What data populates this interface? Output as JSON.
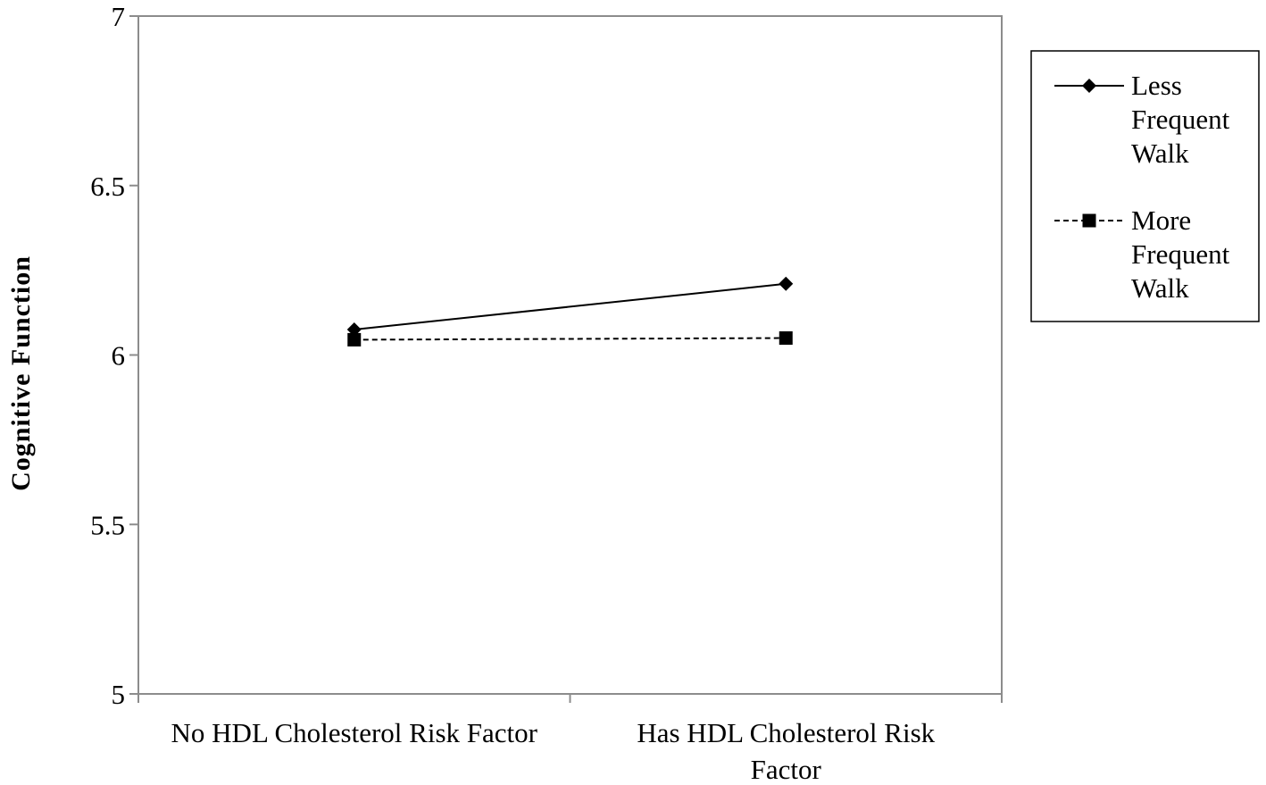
{
  "chart_data": {
    "type": "line",
    "categories": [
      [
        "No HDL Cholesterol Risk Factor"
      ],
      [
        "Has HDL Cholesterol Risk",
        "Factor"
      ]
    ],
    "ylabel": "Cognitive  Function",
    "xlabel": "",
    "title": "",
    "ylim": [
      5,
      7
    ],
    "yticks": [
      {
        "value": 5,
        "label": "5"
      },
      {
        "value": 5.5,
        "label": "5.5"
      },
      {
        "value": 6,
        "label": "6"
      },
      {
        "value": 6.5,
        "label": "6.5"
      },
      {
        "value": 7,
        "label": "7"
      }
    ],
    "grid": false,
    "legend_position": "right",
    "series": [
      {
        "name_lines": [
          "Less",
          "Frequent",
          "Walk"
        ],
        "values": [
          6.075,
          6.21
        ],
        "marker": "diamond",
        "line_style": "solid",
        "color": "#000000"
      },
      {
        "name_lines": [
          "More",
          "Frequent",
          "Walk"
        ],
        "values": [
          6.045,
          6.05
        ],
        "marker": "square",
        "line_style": "dashed",
        "color": "#000000"
      }
    ]
  }
}
